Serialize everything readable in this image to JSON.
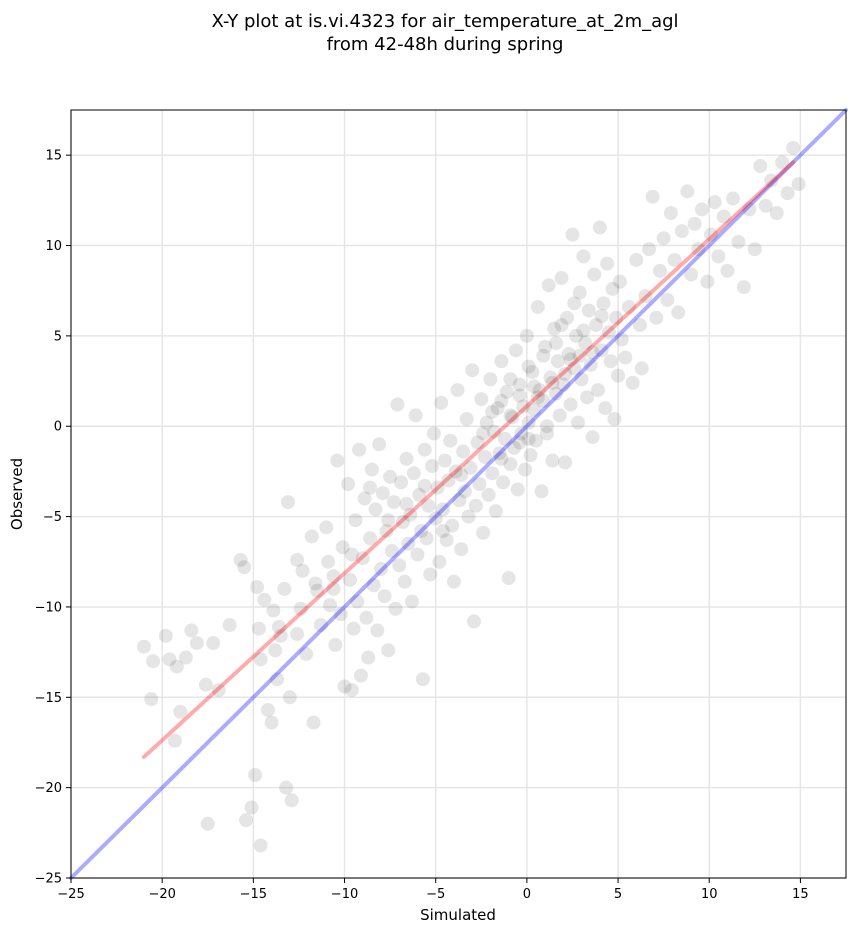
{
  "chart_data": {
    "type": "scatter",
    "title": [
      "X-Y plot at is.vi.4323 for air_temperature_at_2m_agl",
      "from 42-48h during spring"
    ],
    "xlabel": "Simulated",
    "ylabel": "Observed",
    "xlim": [
      -25,
      17.5
    ],
    "ylim": [
      -25,
      17.5
    ],
    "xticks": [
      -25,
      -20,
      -15,
      -10,
      -5,
      0,
      5,
      10,
      15
    ],
    "yticks": [
      -25,
      -20,
      -15,
      -10,
      -5,
      0,
      5,
      10,
      15
    ],
    "xtick_labels": [
      "−25",
      "−20",
      "−15",
      "−10",
      "−5",
      "0",
      "5",
      "10",
      "15"
    ],
    "ytick_labels": [
      "−25",
      "−20",
      "−15",
      "−10",
      "−5",
      "0",
      "5",
      "10",
      "15"
    ],
    "grid": true,
    "legend": "none",
    "point_color": "#000000",
    "point_opacity": 0.1,
    "lines": [
      {
        "role": "identity",
        "color": "#0000ff",
        "opacity": 0.33,
        "x": [
          -25,
          17.5
        ],
        "y": [
          -25,
          17.5
        ]
      },
      {
        "role": "fit",
        "color": "#ff0000",
        "opacity": 0.33,
        "x": [
          -21,
          14.6
        ],
        "y": [
          -18.3,
          14.6
        ]
      }
    ],
    "points": [
      [
        -21.0,
        -12.2
      ],
      [
        -20.6,
        -15.1
      ],
      [
        -20.5,
        -13.0
      ],
      [
        -19.8,
        -11.6
      ],
      [
        -19.6,
        -12.9
      ],
      [
        -19.3,
        -17.4
      ],
      [
        -19.2,
        -13.3
      ],
      [
        -19.0,
        -15.8
      ],
      [
        -18.7,
        -12.8
      ],
      [
        -18.4,
        -11.3
      ],
      [
        -18.1,
        -12.0
      ],
      [
        -17.6,
        -14.3
      ],
      [
        -17.5,
        -22.0
      ],
      [
        -17.2,
        -12.0
      ],
      [
        -16.9,
        -14.6
      ],
      [
        -16.3,
        -11.0
      ],
      [
        -15.7,
        -7.4
      ],
      [
        -15.5,
        -7.8
      ],
      [
        -15.4,
        -21.8
      ],
      [
        -15.1,
        -21.1
      ],
      [
        -14.9,
        -19.3
      ],
      [
        -14.8,
        -8.9
      ],
      [
        -14.7,
        -11.2
      ],
      [
        -14.6,
        -23.2
      ],
      [
        -14.4,
        -9.6
      ],
      [
        -14.2,
        -15.7
      ],
      [
        -14.0,
        -16.4
      ],
      [
        -13.9,
        -10.2
      ],
      [
        -13.8,
        -12.4
      ],
      [
        -13.7,
        -14.0
      ],
      [
        -13.5,
        -11.6
      ],
      [
        -13.3,
        -9.0
      ],
      [
        -13.2,
        -20.0
      ],
      [
        -13.1,
        -4.2
      ],
      [
        -13.0,
        -15.0
      ],
      [
        -12.9,
        -20.7
      ],
      [
        -12.6,
        -7.4
      ],
      [
        -12.4,
        -10.1
      ],
      [
        -12.3,
        -8.0
      ],
      [
        -12.1,
        -12.6
      ],
      [
        -11.8,
        -6.1
      ],
      [
        -11.7,
        -16.4
      ],
      [
        -11.5,
        -9.1
      ],
      [
        -11.3,
        -11.0
      ],
      [
        -11.0,
        -5.6
      ],
      [
        -10.9,
        -7.5
      ],
      [
        -10.8,
        -9.9
      ],
      [
        -10.6,
        -8.3
      ],
      [
        -10.5,
        -12.1
      ],
      [
        -10.4,
        -1.9
      ],
      [
        -10.2,
        -10.4
      ],
      [
        -10.1,
        -6.7
      ],
      [
        -10.0,
        -14.4
      ],
      [
        -9.8,
        -3.2
      ],
      [
        -9.7,
        -8.5
      ],
      [
        -9.6,
        -14.6
      ],
      [
        -9.5,
        -11.2
      ],
      [
        -9.4,
        -5.2
      ],
      [
        -9.3,
        -9.7
      ],
      [
        -9.2,
        -1.3
      ],
      [
        -9.1,
        -13.8
      ],
      [
        -9.0,
        -7.3
      ],
      [
        -8.9,
        -4.0
      ],
      [
        -8.8,
        -10.6
      ],
      [
        -8.7,
        -12.8
      ],
      [
        -8.6,
        -6.2
      ],
      [
        -8.5,
        -2.4
      ],
      [
        -8.4,
        -8.8
      ],
      [
        -8.3,
        -4.6
      ],
      [
        -8.2,
        -11.3
      ],
      [
        -8.1,
        -1.0
      ],
      [
        -8.0,
        -7.9
      ],
      [
        -7.9,
        -3.7
      ],
      [
        -7.8,
        -9.4
      ],
      [
        -7.7,
        -5.8
      ],
      [
        -7.6,
        -12.4
      ],
      [
        -7.5,
        -2.8
      ],
      [
        -7.4,
        -6.9
      ],
      [
        -7.3,
        -4.2
      ],
      [
        -7.2,
        -10.1
      ],
      [
        -7.1,
        1.2
      ],
      [
        -7.0,
        -7.7
      ],
      [
        -6.9,
        -3.1
      ],
      [
        -6.8,
        -5.3
      ],
      [
        -6.7,
        -8.6
      ],
      [
        -6.6,
        -1.8
      ],
      [
        -6.5,
        -6.5
      ],
      [
        -6.4,
        -4.9
      ],
      [
        -6.3,
        -9.7
      ],
      [
        -6.2,
        -2.6
      ],
      [
        -6.1,
        0.6
      ],
      [
        -6.0,
        -7.1
      ],
      [
        -5.9,
        -3.8
      ],
      [
        -5.8,
        -5.8
      ],
      [
        -5.7,
        -14.0
      ],
      [
        -5.6,
        -1.3
      ],
      [
        -5.5,
        -6.2
      ],
      [
        -5.4,
        -4.4
      ],
      [
        -5.3,
        -8.2
      ],
      [
        -5.2,
        -2.2
      ],
      [
        -5.1,
        -0.4
      ],
      [
        -5.0,
        -5.1
      ],
      [
        -4.9,
        -3.4
      ],
      [
        -4.8,
        -7.5
      ],
      [
        -4.7,
        1.3
      ],
      [
        -4.6,
        -4.6
      ],
      [
        -4.5,
        -1.9
      ],
      [
        -4.4,
        -6.3
      ],
      [
        -4.3,
        -3.0
      ],
      [
        -4.2,
        -0.8
      ],
      [
        -4.1,
        -5.5
      ],
      [
        -4.0,
        -8.6
      ],
      [
        -3.9,
        -2.5
      ],
      [
        -3.8,
        2.0
      ],
      [
        -3.7,
        -4.1
      ],
      [
        -3.6,
        -6.8
      ],
      [
        -3.5,
        -1.4
      ],
      [
        -3.4,
        -3.6
      ],
      [
        -3.3,
        0.4
      ],
      [
        -3.2,
        -5.0
      ],
      [
        -3.1,
        -2.3
      ],
      [
        -3.0,
        3.1
      ],
      [
        -2.9,
        -10.8
      ],
      [
        -2.8,
        -4.4
      ],
      [
        -2.7,
        -0.9
      ],
      [
        -2.6,
        -3.2
      ],
      [
        -2.5,
        1.5
      ],
      [
        -2.4,
        -5.9
      ],
      [
        -2.3,
        -1.7
      ],
      [
        -2.2,
        0.2
      ],
      [
        -2.1,
        -3.8
      ],
      [
        -2.0,
        2.6
      ],
      [
        -1.9,
        -2.6
      ],
      [
        -1.8,
        -0.3
      ],
      [
        -1.7,
        -4.7
      ],
      [
        -1.6,
        1.0
      ],
      [
        -1.5,
        -1.5
      ],
      [
        -1.4,
        3.6
      ],
      [
        -1.3,
        -3.1
      ],
      [
        -1.2,
        -0.7
      ],
      [
        -1.1,
        1.9
      ],
      [
        -1.0,
        -8.4
      ],
      [
        -0.9,
        -2.1
      ],
      [
        -0.8,
        0.5
      ],
      [
        -0.7,
        -1.2
      ],
      [
        -0.6,
        4.2
      ],
      [
        -0.5,
        -3.5
      ],
      [
        -0.4,
        2.3
      ],
      [
        -0.3,
        -0.4
      ],
      [
        -0.2,
        1.1
      ],
      [
        -0.1,
        -2.4
      ],
      [
        0.0,
        5.0
      ],
      [
        0.1,
        0.2
      ],
      [
        0.2,
        -1.6
      ],
      [
        0.3,
        3.0
      ],
      [
        0.4,
        0.9
      ],
      [
        0.5,
        -0.8
      ],
      [
        0.6,
        6.6
      ],
      [
        0.7,
        2.0
      ],
      [
        0.8,
        -3.6
      ],
      [
        0.9,
        1.4
      ],
      [
        1.0,
        4.4
      ],
      [
        1.1,
        0.0
      ],
      [
        1.2,
        7.8
      ],
      [
        1.3,
        2.7
      ],
      [
        1.4,
        -1.9
      ],
      [
        1.5,
        5.4
      ],
      [
        1.6,
        1.8
      ],
      [
        1.7,
        3.6
      ],
      [
        1.8,
        0.6
      ],
      [
        1.9,
        8.2
      ],
      [
        2.0,
        2.3
      ],
      [
        2.1,
        -2.0
      ],
      [
        2.2,
        6.0
      ],
      [
        2.3,
        4.0
      ],
      [
        2.4,
        1.2
      ],
      [
        2.5,
        10.6
      ],
      [
        2.6,
        3.2
      ],
      [
        2.7,
        5.0
      ],
      [
        2.8,
        0.2
      ],
      [
        2.9,
        7.4
      ],
      [
        3.0,
        2.6
      ],
      [
        3.1,
        9.4
      ],
      [
        3.2,
        4.6
      ],
      [
        3.3,
        1.6
      ],
      [
        3.4,
        6.4
      ],
      [
        3.5,
        3.4
      ],
      [
        3.6,
        -0.6
      ],
      [
        3.7,
        8.4
      ],
      [
        3.8,
        5.6
      ],
      [
        3.9,
        2.0
      ],
      [
        4.0,
        11.0
      ],
      [
        4.1,
        4.2
      ],
      [
        4.2,
        6.8
      ],
      [
        4.3,
        1.0
      ],
      [
        4.4,
        9.0
      ],
      [
        4.5,
        5.2
      ],
      [
        4.6,
        3.6
      ],
      [
        4.7,
        7.6
      ],
      [
        4.8,
        0.4
      ],
      [
        4.9,
        6.0
      ],
      [
        5.0,
        2.8
      ],
      [
        5.1,
        8.0
      ],
      [
        5.2,
        4.8
      ],
      [
        5.4,
        3.8
      ],
      [
        5.6,
        6.6
      ],
      [
        5.8,
        2.4
      ],
      [
        6.0,
        9.2
      ],
      [
        6.2,
        5.6
      ],
      [
        6.3,
        3.2
      ],
      [
        6.5,
        7.2
      ],
      [
        6.7,
        9.8
      ],
      [
        6.9,
        12.7
      ],
      [
        7.1,
        6.0
      ],
      [
        7.3,
        8.6
      ],
      [
        7.5,
        10.4
      ],
      [
        7.7,
        7.0
      ],
      [
        7.9,
        11.8
      ],
      [
        8.1,
        9.2
      ],
      [
        8.3,
        6.3
      ],
      [
        8.5,
        10.8
      ],
      [
        8.8,
        13.0
      ],
      [
        9.0,
        8.4
      ],
      [
        9.2,
        11.2
      ],
      [
        9.4,
        9.8
      ],
      [
        9.6,
        12.0
      ],
      [
        9.9,
        8.0
      ],
      [
        10.1,
        10.6
      ],
      [
        10.3,
        12.4
      ],
      [
        10.5,
        9.4
      ],
      [
        10.8,
        11.6
      ],
      [
        11.0,
        8.6
      ],
      [
        11.3,
        12.6
      ],
      [
        11.6,
        10.2
      ],
      [
        11.9,
        7.7
      ],
      [
        12.2,
        12.0
      ],
      [
        12.5,
        9.8
      ],
      [
        12.8,
        14.4
      ],
      [
        13.1,
        12.2
      ],
      [
        13.4,
        13.6
      ],
      [
        13.7,
        11.8
      ],
      [
        14.0,
        14.6
      ],
      [
        14.3,
        12.9
      ],
      [
        14.6,
        15.4
      ],
      [
        14.9,
        13.4
      ],
      [
        -1.4,
        1.4
      ],
      [
        -0.9,
        2.6
      ],
      [
        -0.4,
        -0.9
      ],
      [
        0.1,
        3.3
      ],
      [
        0.6,
        1.6
      ],
      [
        1.1,
        -0.4
      ],
      [
        1.6,
        4.6
      ],
      [
        2.1,
        2.9
      ],
      [
        2.6,
        6.8
      ],
      [
        3.1,
        5.3
      ],
      [
        3.6,
        4.1
      ],
      [
        4.1,
        6.1
      ],
      [
        0.4,
        2.2
      ],
      [
        0.9,
        3.9
      ],
      [
        1.4,
        2.4
      ],
      [
        1.9,
        5.6
      ],
      [
        2.4,
        3.7
      ],
      [
        2.9,
        3.9
      ],
      [
        -2.4,
        -0.4
      ],
      [
        -1.9,
        0.8
      ],
      [
        -1.4,
        -1.8
      ],
      [
        -0.9,
        0.6
      ],
      [
        -0.4,
        1.7
      ],
      [
        0.1,
        -0.7
      ],
      [
        -6.6,
        -4.3
      ],
      [
        -5.6,
        -3.3
      ],
      [
        -4.6,
        -5.8
      ],
      [
        -3.6,
        -2.7
      ],
      [
        -7.6,
        -5.2
      ],
      [
        -8.6,
        -3.4
      ],
      [
        -9.6,
        -7.1
      ],
      [
        -10.6,
        -9.0
      ],
      [
        -11.6,
        -8.7
      ],
      [
        -12.6,
        -11.5
      ],
      [
        -13.6,
        -11.1
      ],
      [
        -14.6,
        -12.9
      ]
    ]
  }
}
